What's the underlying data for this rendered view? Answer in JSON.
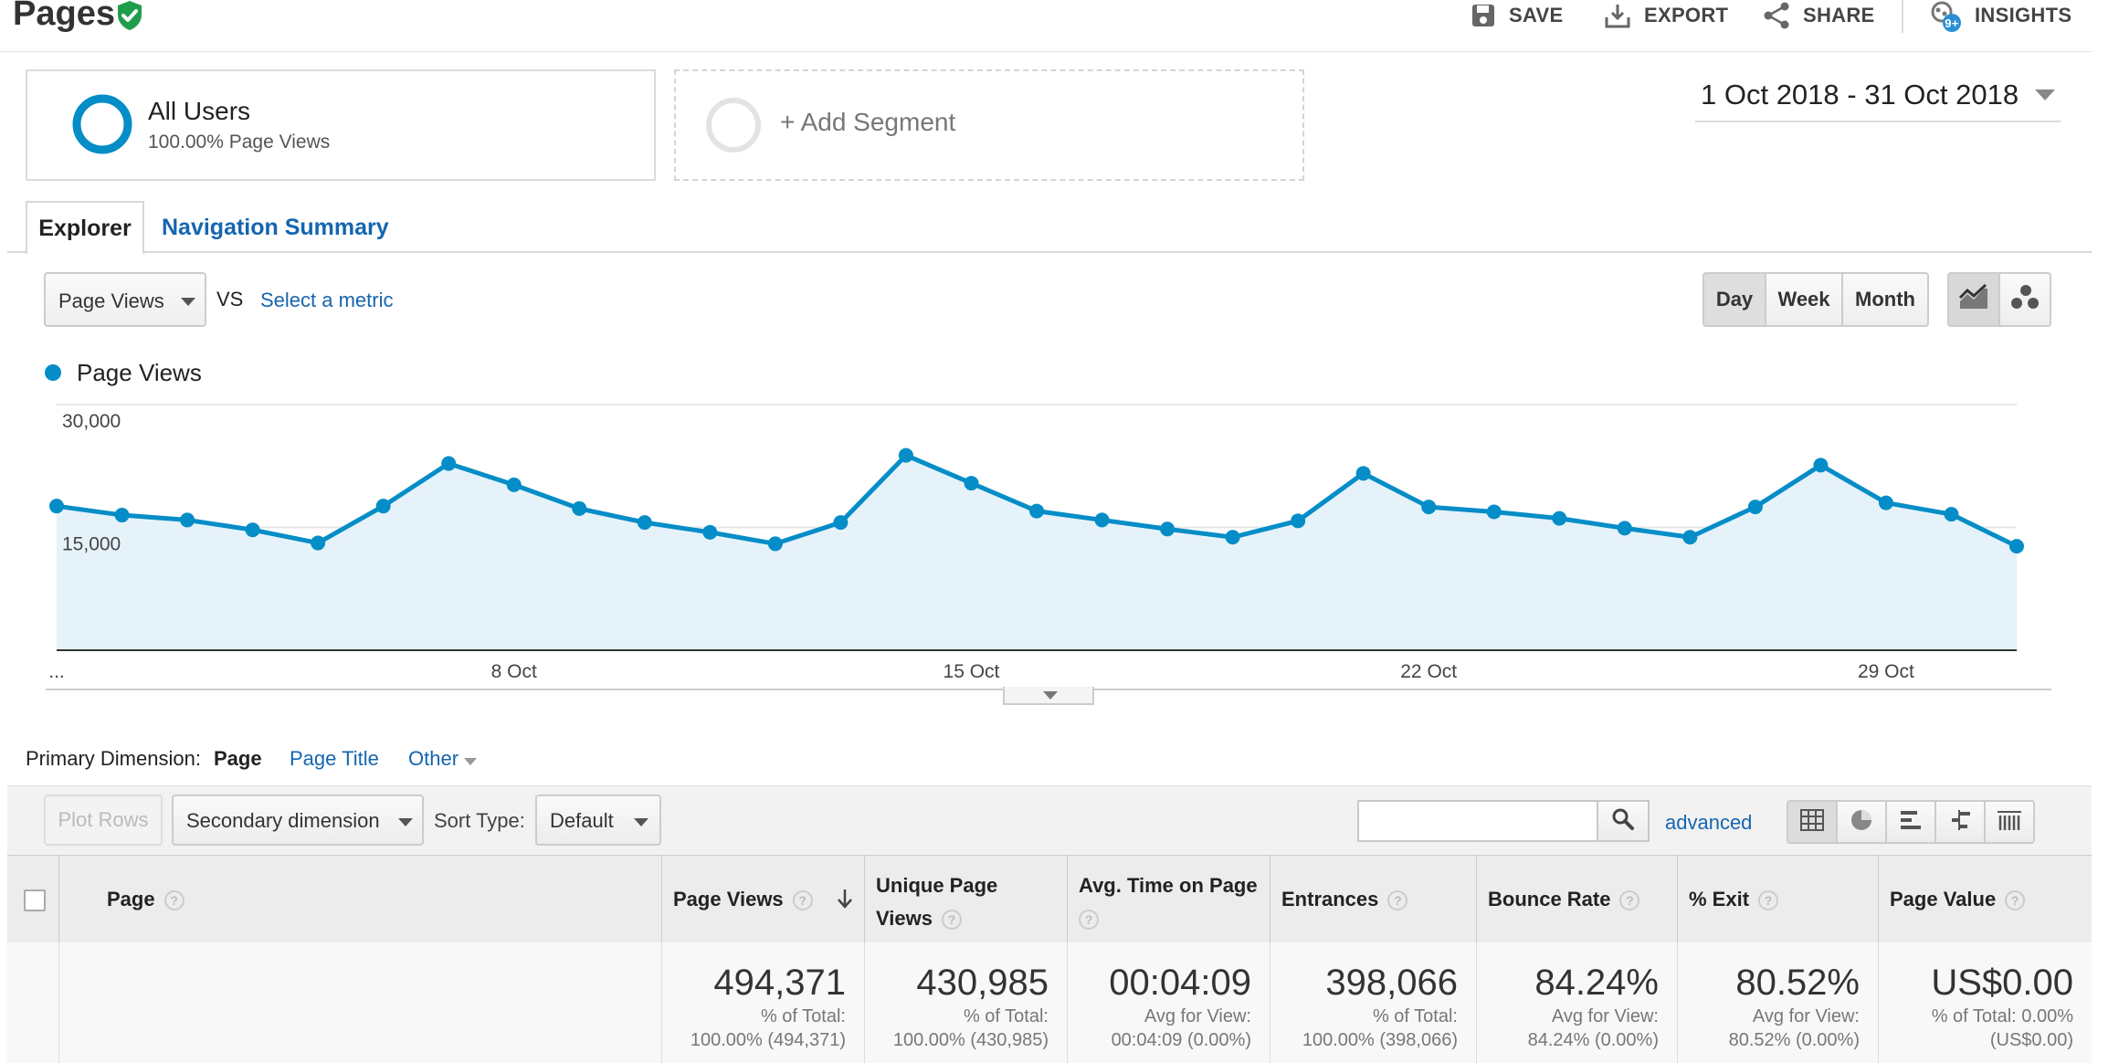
{
  "header": {
    "title": "Pages",
    "actions": {
      "save": "SAVE",
      "export": "EXPORT",
      "share": "SHARE",
      "insights": "INSIGHTS"
    },
    "insights_badge": "9+"
  },
  "segments": {
    "all_users": {
      "title": "All Users",
      "subtitle": "100.00% Page Views"
    },
    "add_segment": "+ Add Segment"
  },
  "date_range": "1 Oct 2018 - 31 Oct 2018",
  "tabs": [
    "Explorer",
    "Navigation Summary"
  ],
  "metric_controls": {
    "primary_metric": "Page Views",
    "vs": "VS",
    "select_metric": "Select a metric",
    "granularity": [
      "Day",
      "Week",
      "Month"
    ],
    "selected_granularity": "Day"
  },
  "chart_data": {
    "type": "area",
    "series": [
      {
        "name": "Page Views",
        "values": [
          17600,
          16500,
          15900,
          14700,
          13100,
          17600,
          22800,
          20200,
          17300,
          15600,
          14400,
          13000,
          15600,
          23800,
          20400,
          17000,
          15900,
          14800,
          13800,
          15800,
          21600,
          17500,
          16900,
          16100,
          14900,
          13800,
          17500,
          22600,
          18000,
          16600,
          12700
        ]
      }
    ],
    "x": [
      "1 Oct",
      "2 Oct",
      "3 Oct",
      "4 Oct",
      "5 Oct",
      "6 Oct",
      "7 Oct",
      "8 Oct",
      "9 Oct",
      "10 Oct",
      "11 Oct",
      "12 Oct",
      "13 Oct",
      "14 Oct",
      "15 Oct",
      "16 Oct",
      "17 Oct",
      "18 Oct",
      "19 Oct",
      "20 Oct",
      "21 Oct",
      "22 Oct",
      "23 Oct",
      "24 Oct",
      "25 Oct",
      "26 Oct",
      "27 Oct",
      "28 Oct",
      "29 Oct",
      "30 Oct",
      "31 Oct"
    ],
    "x_tick_labels": [
      "...",
      "8 Oct",
      "15 Oct",
      "22 Oct",
      "29 Oct"
    ],
    "y_tick_labels": [
      "30,000",
      "15,000"
    ],
    "ylim": [
      0,
      30000
    ],
    "color": "#058dc7",
    "fill_color": "#e6f2fa",
    "grid": true
  },
  "primary_dimension": {
    "label": "Primary Dimension:",
    "options": [
      "Page",
      "Page Title",
      "Other"
    ],
    "selected": "Page"
  },
  "toolbar": {
    "plot_rows": "Plot Rows",
    "secondary_dimension": "Secondary dimension",
    "sort_type_label": "Sort Type:",
    "sort_type_value": "Default",
    "search_value": "",
    "advanced": "advanced"
  },
  "table": {
    "columns": [
      "Page",
      "Page Views",
      "Unique Page Views",
      "Avg. Time on Page",
      "Entrances",
      "Bounce Rate",
      "% Exit",
      "Page Value"
    ],
    "totals": [
      {
        "value": "494,371",
        "line1": "% of Total:",
        "line2": "100.00% (494,371)"
      },
      {
        "value": "430,985",
        "line1": "% of Total:",
        "line2": "100.00% (430,985)"
      },
      {
        "value": "00:04:09",
        "line1": "Avg for View:",
        "line2": "00:04:09 (0.00%)"
      },
      {
        "value": "398,066",
        "line1": "% of Total:",
        "line2": "100.00% (398,066)"
      },
      {
        "value": "84.24%",
        "line1": "Avg for View:",
        "line2": "84.24% (0.00%)"
      },
      {
        "value": "80.52%",
        "line1": "Avg for View:",
        "line2": "80.52% (0.00%)"
      },
      {
        "value": "US$0.00",
        "line1": "% of Total: 0.00%",
        "line2": "(US$0.00)"
      }
    ]
  },
  "colors": {
    "accent": "#058dc7",
    "link": "#1565b0",
    "verified": "#1e9e4a"
  }
}
